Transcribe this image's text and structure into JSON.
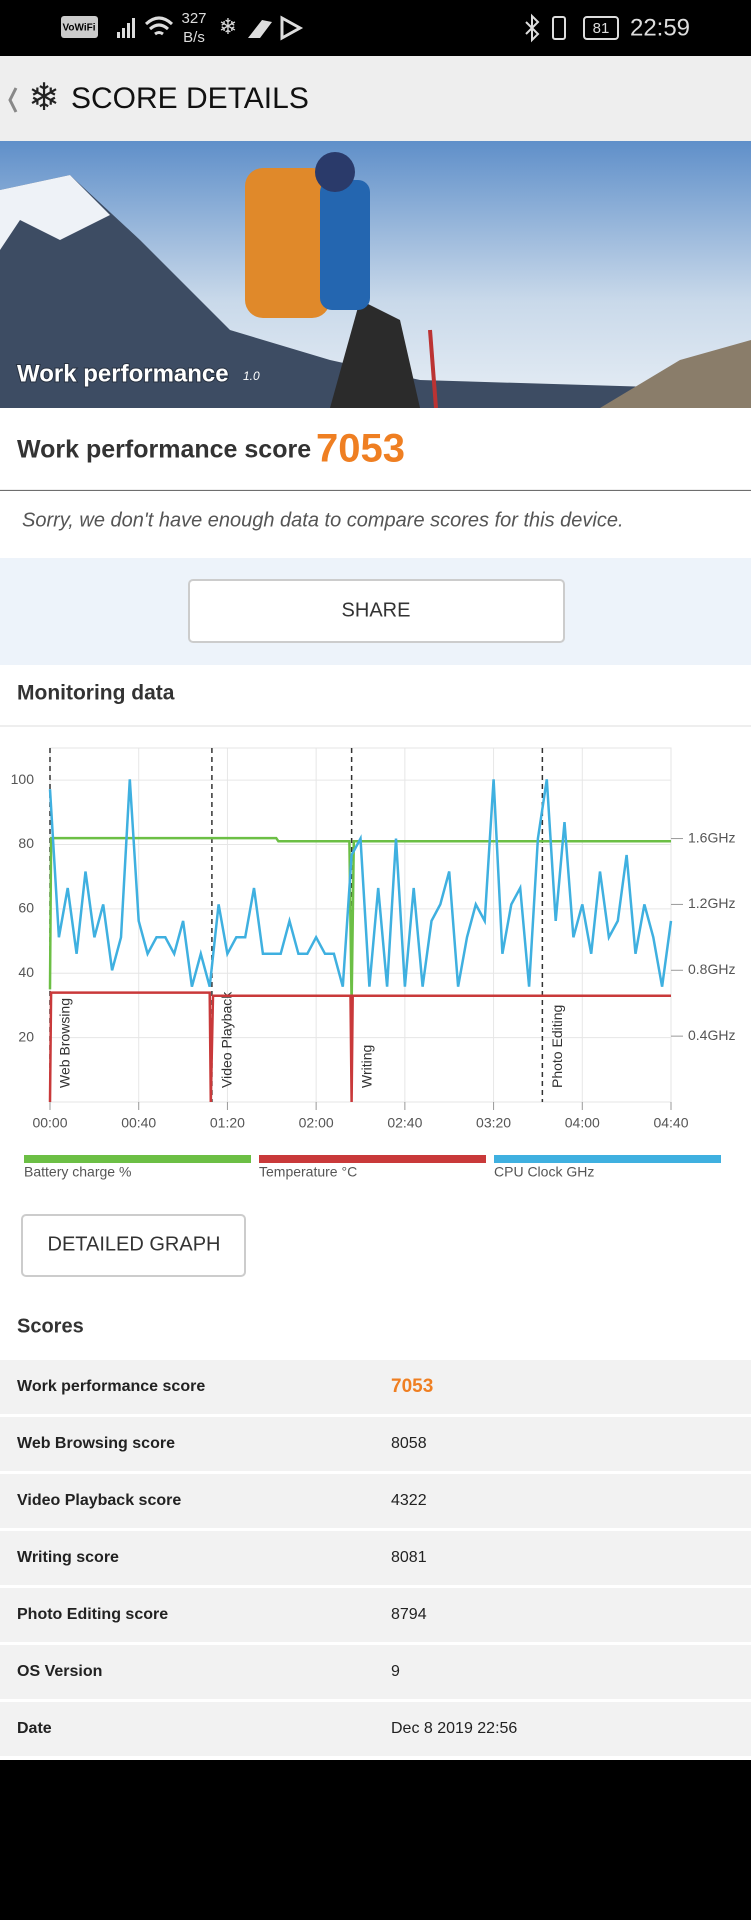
{
  "status_bar": {
    "wifi_label": "VoWiFi",
    "speed": "327",
    "speed_unit": "B/s",
    "battery": "81",
    "time": "22:59"
  },
  "header": {
    "title": "SCORE DETAILS"
  },
  "hero": {
    "title": "Work performance",
    "version": "1.0"
  },
  "score": {
    "label": "Work performance score",
    "value": "7053"
  },
  "notice": "Sorry, we don't have enough data to compare scores for this device.",
  "share_button": "SHARE",
  "chart_data": {
    "type": "line",
    "title": "Monitoring data",
    "xlim": [
      0,
      280
    ],
    "xticks": [
      {
        "value": 0,
        "label": "00:00"
      },
      {
        "value": 40,
        "label": "00:40"
      },
      {
        "value": 80,
        "label": "01:20"
      },
      {
        "value": 120,
        "label": "02:00"
      },
      {
        "value": 160,
        "label": "02:40"
      },
      {
        "value": 200,
        "label": "03:20"
      },
      {
        "value": 240,
        "label": "04:00"
      },
      {
        "value": 280,
        "label": "04:40"
      }
    ],
    "ylim": [
      0,
      110
    ],
    "yticks": [
      20,
      40,
      60,
      80,
      100
    ],
    "y2lim": [
      0,
      2.15
    ],
    "y2ticks": [
      {
        "value": 0.4,
        "label": "0.4GHz"
      },
      {
        "value": 0.8,
        "label": "0.8GHz"
      },
      {
        "value": 1.2,
        "label": "1.2GHz"
      },
      {
        "value": 1.6,
        "label": "1.6GHz"
      }
    ],
    "grid": true,
    "annotations": [
      {
        "x": 0,
        "label": "Web Browsing"
      },
      {
        "x": 73,
        "label": "Video Playback"
      },
      {
        "x": 136,
        "label": "Writing"
      },
      {
        "x": 222,
        "label": "Photo Editing"
      }
    ],
    "series": [
      {
        "name": "Battery charge %",
        "color": "#6cbf45",
        "x": [
          0,
          0.5,
          72,
          102,
          103,
          135,
          136,
          137,
          280
        ],
        "values": [
          35,
          82,
          82,
          82,
          81,
          81,
          30,
          81,
          81
        ]
      },
      {
        "name": "Temperature °C",
        "color": "#c9393a",
        "x": [
          0,
          0.5,
          72,
          72.5,
          73.5,
          135.5,
          136,
          136.5,
          280
        ],
        "values": [
          0,
          34,
          34,
          0,
          33,
          33,
          0,
          33,
          33
        ]
      },
      {
        "name": "CPU Clock GHz",
        "color": "#3fb0e0",
        "axis": "y2",
        "x": [
          0,
          4,
          8,
          12,
          16,
          20,
          24,
          28,
          32,
          36,
          40,
          44,
          48,
          52,
          56,
          60,
          64,
          68,
          72,
          76,
          80,
          84,
          88,
          92,
          96,
          100,
          104,
          108,
          112,
          116,
          120,
          124,
          128,
          132,
          136,
          140,
          144,
          148,
          152,
          156,
          160,
          164,
          168,
          172,
          176,
          180,
          184,
          188,
          192,
          196,
          200,
          204,
          208,
          212,
          216,
          220,
          224,
          228,
          232,
          236,
          240,
          244,
          248,
          252,
          256,
          260,
          264,
          268,
          272,
          276,
          280
        ],
        "values": [
          1.9,
          1.0,
          1.3,
          0.9,
          1.4,
          1.0,
          1.2,
          0.8,
          1.0,
          1.96,
          1.1,
          0.9,
          1.0,
          1.0,
          0.9,
          1.1,
          0.7,
          0.9,
          0.7,
          1.2,
          0.9,
          1.0,
          1.0,
          1.3,
          0.9,
          0.9,
          0.9,
          1.1,
          0.9,
          0.9,
          1.0,
          0.9,
          0.9,
          0.7,
          1.5,
          1.6,
          0.7,
          1.3,
          0.7,
          1.6,
          0.7,
          1.3,
          0.7,
          1.1,
          1.2,
          1.4,
          0.7,
          1.0,
          1.2,
          1.1,
          1.96,
          0.9,
          1.2,
          1.3,
          0.7,
          1.6,
          1.96,
          1.1,
          1.7,
          1.0,
          1.2,
          0.9,
          1.4,
          1.0,
          1.1,
          1.5,
          0.9,
          1.2,
          1.0,
          0.7,
          1.1
        ]
      }
    ]
  },
  "detailed_button": "DETAILED GRAPH",
  "scores": {
    "title": "Scores",
    "rows": [
      [
        "Work performance score",
        "7053"
      ],
      [
        "Web Browsing score",
        "8058"
      ],
      [
        "Video Playback score",
        "4322"
      ],
      [
        "Writing score",
        "8081"
      ],
      [
        "Photo Editing score",
        "8794"
      ],
      [
        "OS Version",
        "9"
      ],
      [
        "Date",
        "Dec 8 2019 22:56"
      ]
    ]
  }
}
